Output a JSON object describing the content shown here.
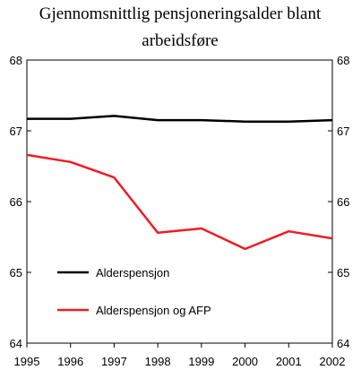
{
  "chart_data": {
    "type": "line",
    "title": "Gjennomsnittlig pensjoneringsalder blant arbeidsføre",
    "title_lines": [
      "Gjennomsnittlig pensjoneringsalder blant",
      "arbeidsføre"
    ],
    "x": [
      "1995",
      "1996",
      "1997",
      "1998",
      "1999",
      "2000",
      "2001",
      "2002"
    ],
    "y_ticks": [
      "68",
      "67",
      "66",
      "65",
      "64"
    ],
    "ylim": [
      64,
      68
    ],
    "y_axis_sides": "left-and-right",
    "grid": false,
    "legend_position": "lower-left",
    "series": [
      {
        "name": "Alderspensjon",
        "color": "#000000",
        "values": [
          67.17,
          67.17,
          67.21,
          67.15,
          67.15,
          67.13,
          67.13,
          67.15
        ]
      },
      {
        "name": "Alderspensjon og AFP",
        "color": "#ee1c25",
        "values": [
          66.66,
          66.56,
          66.34,
          65.56,
          65.62,
          65.33,
          65.58,
          65.48
        ]
      }
    ]
  }
}
